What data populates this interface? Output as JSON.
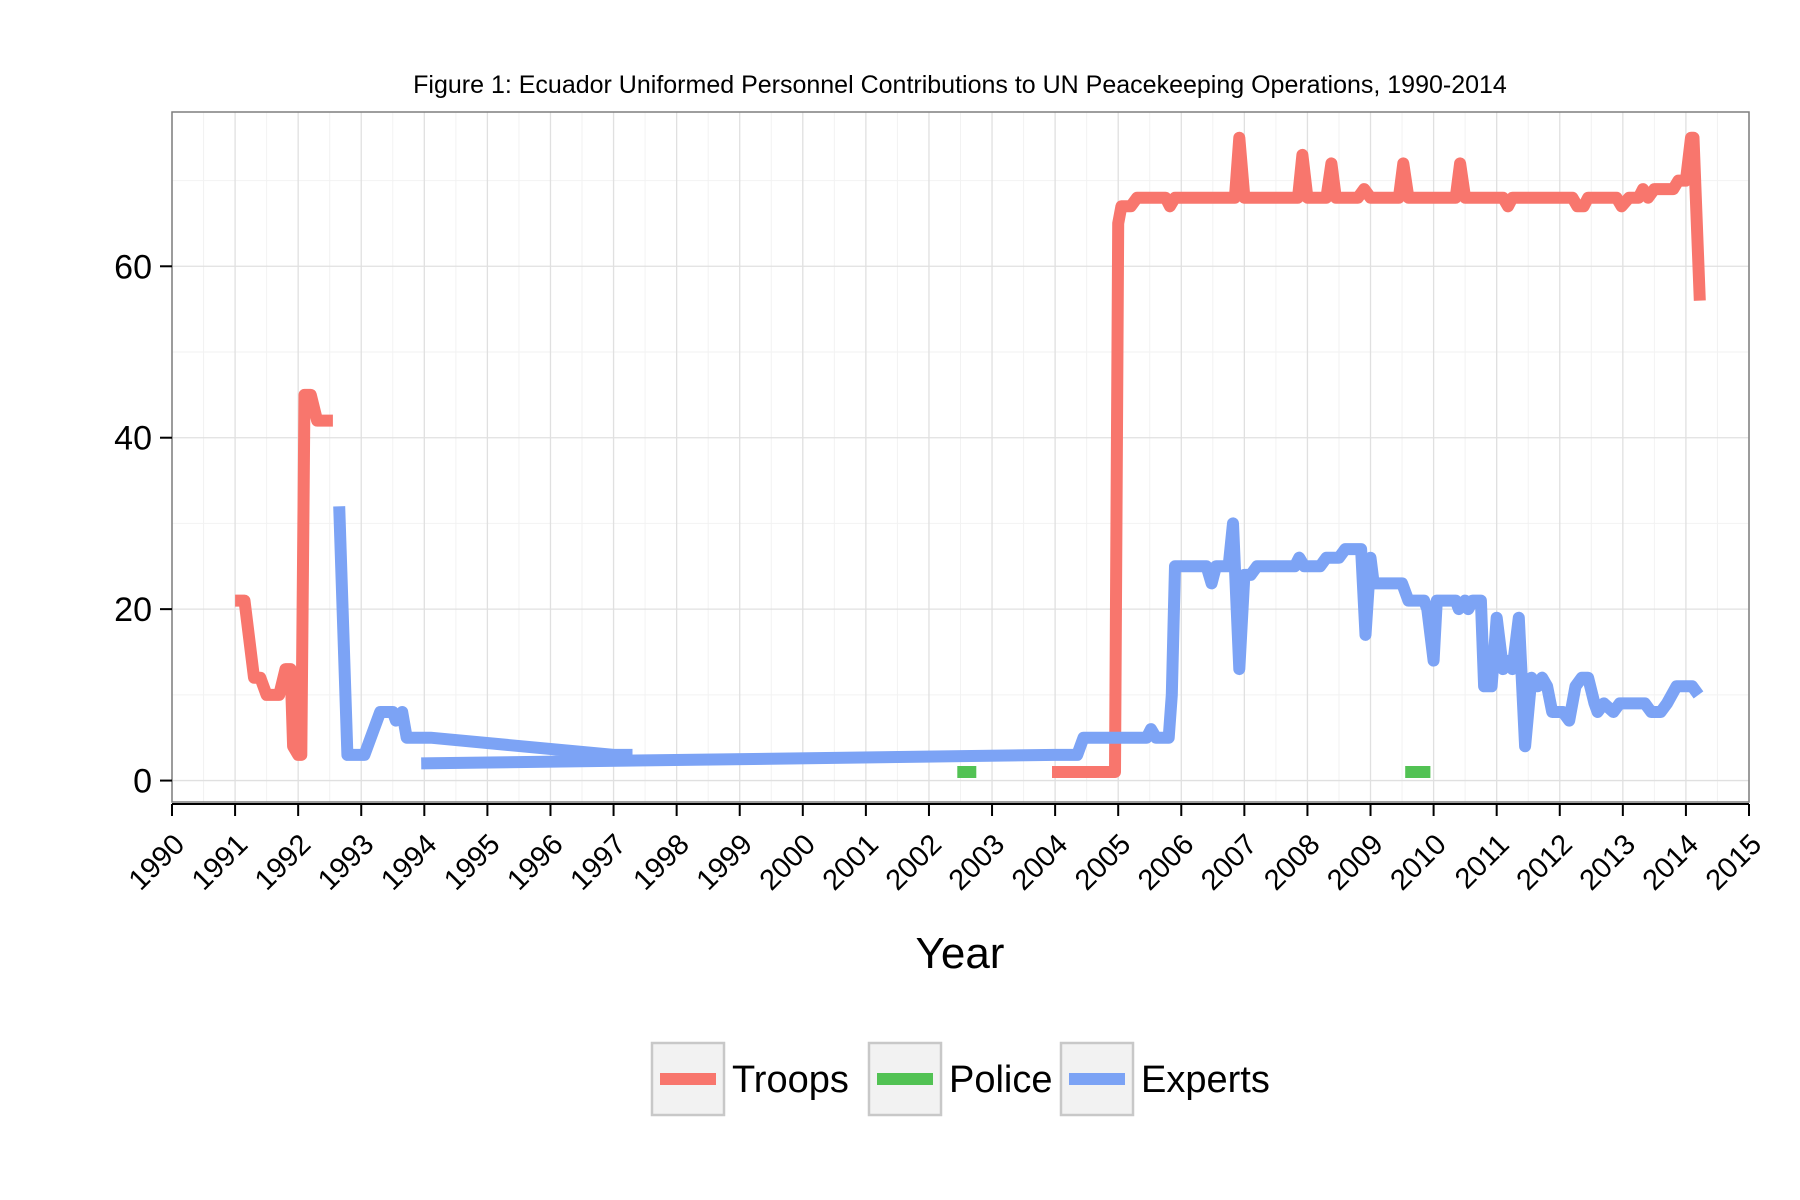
{
  "chart_data": {
    "type": "line",
    "title": "Figure 1: Ecuador Uniformed Personnel Contributions to UN Peacekeeping Operations, 1990-2014",
    "xlabel": "Year",
    "ylabel": "",
    "xlim": [
      1990,
      2015
    ],
    "ylim": [
      -2.5,
      78
    ],
    "x_ticks": [
      1990,
      1991,
      1992,
      1993,
      1994,
      1995,
      1996,
      1997,
      1998,
      1999,
      2000,
      2001,
      2002,
      2003,
      2004,
      2005,
      2006,
      2007,
      2008,
      2009,
      2010,
      2011,
      2012,
      2013,
      2014,
      2015
    ],
    "x_tick_labels": [
      "1990",
      "1991",
      "1992",
      "1993",
      "1994",
      "1995",
      "1996",
      "1997",
      "1998",
      "1999",
      "2000",
      "2001",
      "2002",
      "2003",
      "2004",
      "2005",
      "2006",
      "2007",
      "2008",
      "2009",
      "2010",
      "2011",
      "2012",
      "2013",
      "2014",
      "2015"
    ],
    "y_ticks": [
      0,
      20,
      40,
      60
    ],
    "y_tick_labels": [
      "0",
      "20",
      "40",
      "60"
    ],
    "grid": true,
    "legend_position": "bottom",
    "series": [
      {
        "name": "Troops",
        "color": "#f8766d",
        "segments": [
          [
            [
              1991.0,
              21
            ],
            [
              1991.15,
              21
            ],
            [
              1991.3,
              12
            ],
            [
              1991.4,
              12
            ],
            [
              1991.5,
              10
            ],
            [
              1991.7,
              10
            ],
            [
              1991.8,
              13
            ],
            [
              1991.88,
              13
            ],
            [
              1991.92,
              4
            ],
            [
              1992.0,
              3
            ],
            [
              1992.05,
              3
            ],
            [
              1992.1,
              45
            ],
            [
              1992.2,
              45
            ],
            [
              1992.3,
              42
            ],
            [
              1992.55,
              42
            ]
          ],
          [
            [
              2003.95,
              1
            ],
            [
              2004.95,
              1
            ],
            [
              2005.0,
              65
            ],
            [
              2005.05,
              67
            ],
            [
              2005.2,
              67
            ],
            [
              2005.3,
              68
            ],
            [
              2005.75,
              68
            ],
            [
              2005.82,
              67
            ],
            [
              2005.9,
              68
            ],
            [
              2006.85,
              68
            ],
            [
              2006.92,
              75
            ],
            [
              2007.0,
              68
            ],
            [
              2007.85,
              68
            ],
            [
              2007.92,
              73
            ],
            [
              2008.0,
              68
            ],
            [
              2008.3,
              68
            ],
            [
              2008.38,
              72
            ],
            [
              2008.45,
              68
            ],
            [
              2008.8,
              68
            ],
            [
              2008.9,
              69
            ],
            [
              2009.0,
              68
            ],
            [
              2009.45,
              68
            ],
            [
              2009.52,
              72
            ],
            [
              2009.6,
              68
            ],
            [
              2010.35,
              68
            ],
            [
              2010.42,
              72
            ],
            [
              2010.5,
              68
            ],
            [
              2011.1,
              68
            ],
            [
              2011.18,
              67
            ],
            [
              2011.25,
              68
            ],
            [
              2012.2,
              68
            ],
            [
              2012.28,
              67
            ],
            [
              2012.38,
              67
            ],
            [
              2012.45,
              68
            ],
            [
              2012.9,
              68
            ],
            [
              2012.98,
              67
            ],
            [
              2013.1,
              68
            ],
            [
              2013.25,
              68
            ],
            [
              2013.32,
              69
            ],
            [
              2013.4,
              68
            ],
            [
              2013.5,
              69
            ],
            [
              2013.8,
              69
            ],
            [
              2013.88,
              70
            ],
            [
              2014.0,
              70
            ],
            [
              2014.08,
              75
            ],
            [
              2014.12,
              75
            ],
            [
              2014.22,
              56
            ]
          ]
        ]
      },
      {
        "name": "Police",
        "color": "#52c254",
        "segments": [
          [
            [
              2002.45,
              1
            ],
            [
              2002.75,
              1
            ]
          ],
          [
            [
              2009.55,
              1
            ],
            [
              2009.95,
              1
            ]
          ]
        ]
      },
      {
        "name": "Experts",
        "color": "#7ca3f5",
        "segments": [
          [
            [
              1992.65,
              32
            ],
            [
              1992.78,
              3
            ],
            [
              1993.05,
              3
            ],
            [
              1993.3,
              8
            ],
            [
              1993.5,
              8
            ],
            [
              1993.55,
              7
            ],
            [
              1993.65,
              8
            ],
            [
              1993.72,
              5
            ],
            [
              1994.1,
              5
            ],
            [
              1997.0,
              3
            ],
            [
              1997.3,
              3
            ]
          ],
          [
            [
              1993.95,
              2
            ],
            [
              2004.0,
              3
            ],
            [
              2004.35,
              3
            ],
            [
              2004.45,
              5
            ],
            [
              2005.45,
              5
            ],
            [
              2005.52,
              6
            ],
            [
              2005.6,
              5
            ],
            [
              2005.8,
              5
            ],
            [
              2005.85,
              10
            ],
            [
              2005.9,
              25
            ],
            [
              2006.4,
              25
            ],
            [
              2006.48,
              23
            ],
            [
              2006.55,
              25
            ],
            [
              2006.75,
              25
            ],
            [
              2006.82,
              30
            ],
            [
              2006.92,
              13
            ],
            [
              2007.0,
              24
            ],
            [
              2007.1,
              24
            ],
            [
              2007.2,
              25
            ],
            [
              2007.8,
              25
            ],
            [
              2007.87,
              26
            ],
            [
              2007.95,
              25
            ],
            [
              2008.2,
              25
            ],
            [
              2008.3,
              26
            ],
            [
              2008.5,
              26
            ],
            [
              2008.6,
              27
            ],
            [
              2008.85,
              27
            ],
            [
              2008.92,
              17
            ],
            [
              2009.0,
              26
            ],
            [
              2009.05,
              23
            ],
            [
              2009.5,
              23
            ],
            [
              2009.6,
              21
            ],
            [
              2009.85,
              21
            ],
            [
              2009.9,
              20
            ],
            [
              2010.0,
              14
            ],
            [
              2010.05,
              21
            ],
            [
              2010.35,
              21
            ],
            [
              2010.4,
              20
            ],
            [
              2010.5,
              21
            ],
            [
              2010.55,
              20
            ],
            [
              2010.62,
              21
            ],
            [
              2010.75,
              21
            ],
            [
              2010.8,
              11
            ],
            [
              2010.92,
              11
            ],
            [
              2011.0,
              19
            ],
            [
              2011.1,
              13
            ],
            [
              2011.15,
              14
            ],
            [
              2011.25,
              13
            ],
            [
              2011.35,
              19
            ],
            [
              2011.45,
              4
            ],
            [
              2011.55,
              12
            ],
            [
              2011.65,
              11
            ],
            [
              2011.72,
              12
            ],
            [
              2011.8,
              11
            ],
            [
              2011.88,
              8
            ],
            [
              2012.05,
              8
            ],
            [
              2012.15,
              7
            ],
            [
              2012.25,
              11
            ],
            [
              2012.35,
              12
            ],
            [
              2012.45,
              12
            ],
            [
              2012.55,
              9
            ],
            [
              2012.6,
              8
            ],
            [
              2012.7,
              9
            ],
            [
              2012.85,
              8
            ],
            [
              2012.95,
              9
            ],
            [
              2013.35,
              9
            ],
            [
              2013.45,
              8
            ],
            [
              2013.6,
              8
            ],
            [
              2013.7,
              9
            ],
            [
              2013.85,
              11
            ],
            [
              2014.1,
              11
            ],
            [
              2014.2,
              10
            ]
          ]
        ]
      }
    ]
  }
}
